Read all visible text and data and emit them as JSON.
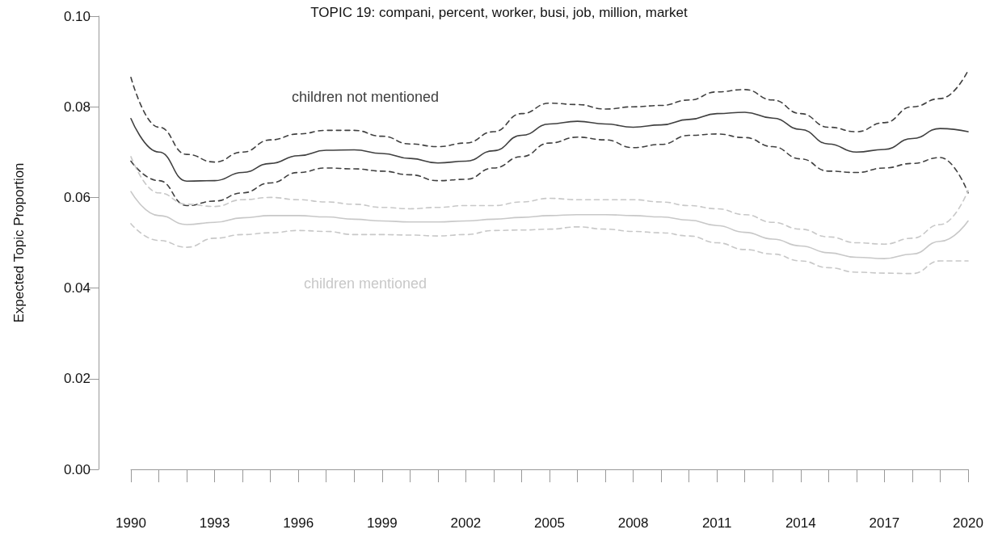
{
  "chart_data": {
    "type": "line",
    "title": "TOPIC 19: compani, percent, worker, busi, job, million, market",
    "ylabel": "Expected Topic Proportion",
    "x": [
      1990,
      1991,
      1992,
      1993,
      1994,
      1995,
      1996,
      1997,
      1998,
      1999,
      2000,
      2001,
      2002,
      2003,
      2004,
      2005,
      2006,
      2007,
      2008,
      2009,
      2010,
      2011,
      2012,
      2013,
      2014,
      2015,
      2016,
      2017,
      2018,
      2019,
      2020
    ],
    "series": [
      {
        "name": "children not mentioned",
        "color": "#404040",
        "values": [
          0.0774,
          0.07,
          0.0636,
          0.0637,
          0.0655,
          0.0675,
          0.0692,
          0.0704,
          0.0705,
          0.0697,
          0.0686,
          0.0676,
          0.068,
          0.0703,
          0.0737,
          0.0762,
          0.0768,
          0.0762,
          0.0755,
          0.076,
          0.0772,
          0.0785,
          0.0788,
          0.0775,
          0.075,
          0.0718,
          0.07,
          0.0706,
          0.073,
          0.0752,
          0.0745
        ]
      },
      {
        "color": "#404040",
        "line_style": "dashed",
        "values": [
          0.0865,
          0.0755,
          0.0695,
          0.0678,
          0.07,
          0.0727,
          0.074,
          0.0748,
          0.0748,
          0.0735,
          0.0718,
          0.0712,
          0.072,
          0.0745,
          0.0785,
          0.0808,
          0.0805,
          0.0795,
          0.08,
          0.0803,
          0.0815,
          0.0833,
          0.0838,
          0.0815,
          0.0785,
          0.0755,
          0.0745,
          0.0765,
          0.08,
          0.0818,
          0.088
        ]
      },
      {
        "color": "#404040",
        "line_style": "dashed",
        "values": [
          0.068,
          0.0637,
          0.0582,
          0.0592,
          0.061,
          0.0632,
          0.0655,
          0.0665,
          0.0663,
          0.0658,
          0.065,
          0.0637,
          0.064,
          0.0665,
          0.069,
          0.072,
          0.0733,
          0.0727,
          0.071,
          0.0717,
          0.0737,
          0.074,
          0.0732,
          0.0712,
          0.0685,
          0.0658,
          0.0655,
          0.0665,
          0.0675,
          0.0688,
          0.061
        ]
      },
      {
        "name": "children mentioned",
        "color": "#c8c8c8",
        "values": [
          0.0613,
          0.056,
          0.054,
          0.0545,
          0.0555,
          0.056,
          0.056,
          0.0557,
          0.0552,
          0.0548,
          0.0546,
          0.0546,
          0.0548,
          0.0552,
          0.0556,
          0.056,
          0.0562,
          0.0562,
          0.056,
          0.0557,
          0.055,
          0.0538,
          0.0523,
          0.0508,
          0.0493,
          0.0478,
          0.0468,
          0.0465,
          0.0475,
          0.0503,
          0.0548
        ]
      },
      {
        "color": "#c8c8c8",
        "line_style": "dashed",
        "values": [
          0.069,
          0.061,
          0.0585,
          0.058,
          0.0595,
          0.06,
          0.0595,
          0.059,
          0.0585,
          0.0578,
          0.0575,
          0.0578,
          0.0582,
          0.0582,
          0.059,
          0.0598,
          0.0595,
          0.0595,
          0.0595,
          0.059,
          0.0582,
          0.0575,
          0.0562,
          0.0545,
          0.053,
          0.0513,
          0.05,
          0.0497,
          0.051,
          0.054,
          0.0615
        ]
      },
      {
        "color": "#c8c8c8",
        "line_style": "dashed",
        "values": [
          0.0542,
          0.0505,
          0.049,
          0.051,
          0.0518,
          0.0522,
          0.0527,
          0.0525,
          0.0518,
          0.0518,
          0.0517,
          0.0515,
          0.0518,
          0.0527,
          0.0528,
          0.053,
          0.0535,
          0.053,
          0.0525,
          0.0522,
          0.0515,
          0.05,
          0.0485,
          0.0475,
          0.046,
          0.0445,
          0.0435,
          0.0433,
          0.0432,
          0.046,
          0.046
        ]
      }
    ],
    "xlim": [
      1990,
      2020
    ],
    "xticks": [
      1990,
      {
        "value": 1991,
        "label": null
      },
      {
        "value": 1992,
        "label": null
      },
      1993,
      {
        "value": 1994,
        "label": null
      },
      {
        "value": 1995,
        "label": null
      },
      1996,
      {
        "value": 1997,
        "label": null
      },
      {
        "value": 1998,
        "label": null
      },
      1999,
      {
        "value": 2000,
        "label": null
      },
      {
        "value": 2001,
        "label": null
      },
      2002,
      {
        "value": 2003,
        "label": null
      },
      {
        "value": 2004,
        "label": null
      },
      2005,
      {
        "value": 2006,
        "label": null
      },
      {
        "value": 2007,
        "label": null
      },
      2008,
      {
        "value": 2009,
        "label": null
      },
      {
        "value": 2010,
        "label": null
      },
      2011,
      {
        "value": 2012,
        "label": null
      },
      {
        "value": 2013,
        "label": null
      },
      2014,
      {
        "value": 2015,
        "label": null
      },
      {
        "value": 2016,
        "label": null
      },
      2017,
      {
        "value": 2018,
        "label": null
      },
      {
        "value": 2019,
        "label": null
      },
      2020
    ],
    "ylim": [
      0,
      0.1
    ],
    "yticks": [
      {
        "value": 0,
        "label": "0.00"
      },
      {
        "value": 0.02,
        "label": "0.02"
      },
      {
        "value": 0.04,
        "label": "0.04"
      },
      {
        "value": 0.06,
        "label": "0.06"
      },
      {
        "value": 0.08,
        "label": "0.08"
      },
      {
        "value": 0.1,
        "label": "0.10"
      }
    ],
    "grid": false,
    "legend": false,
    "marker": "none",
    "line_style": "solid"
  }
}
